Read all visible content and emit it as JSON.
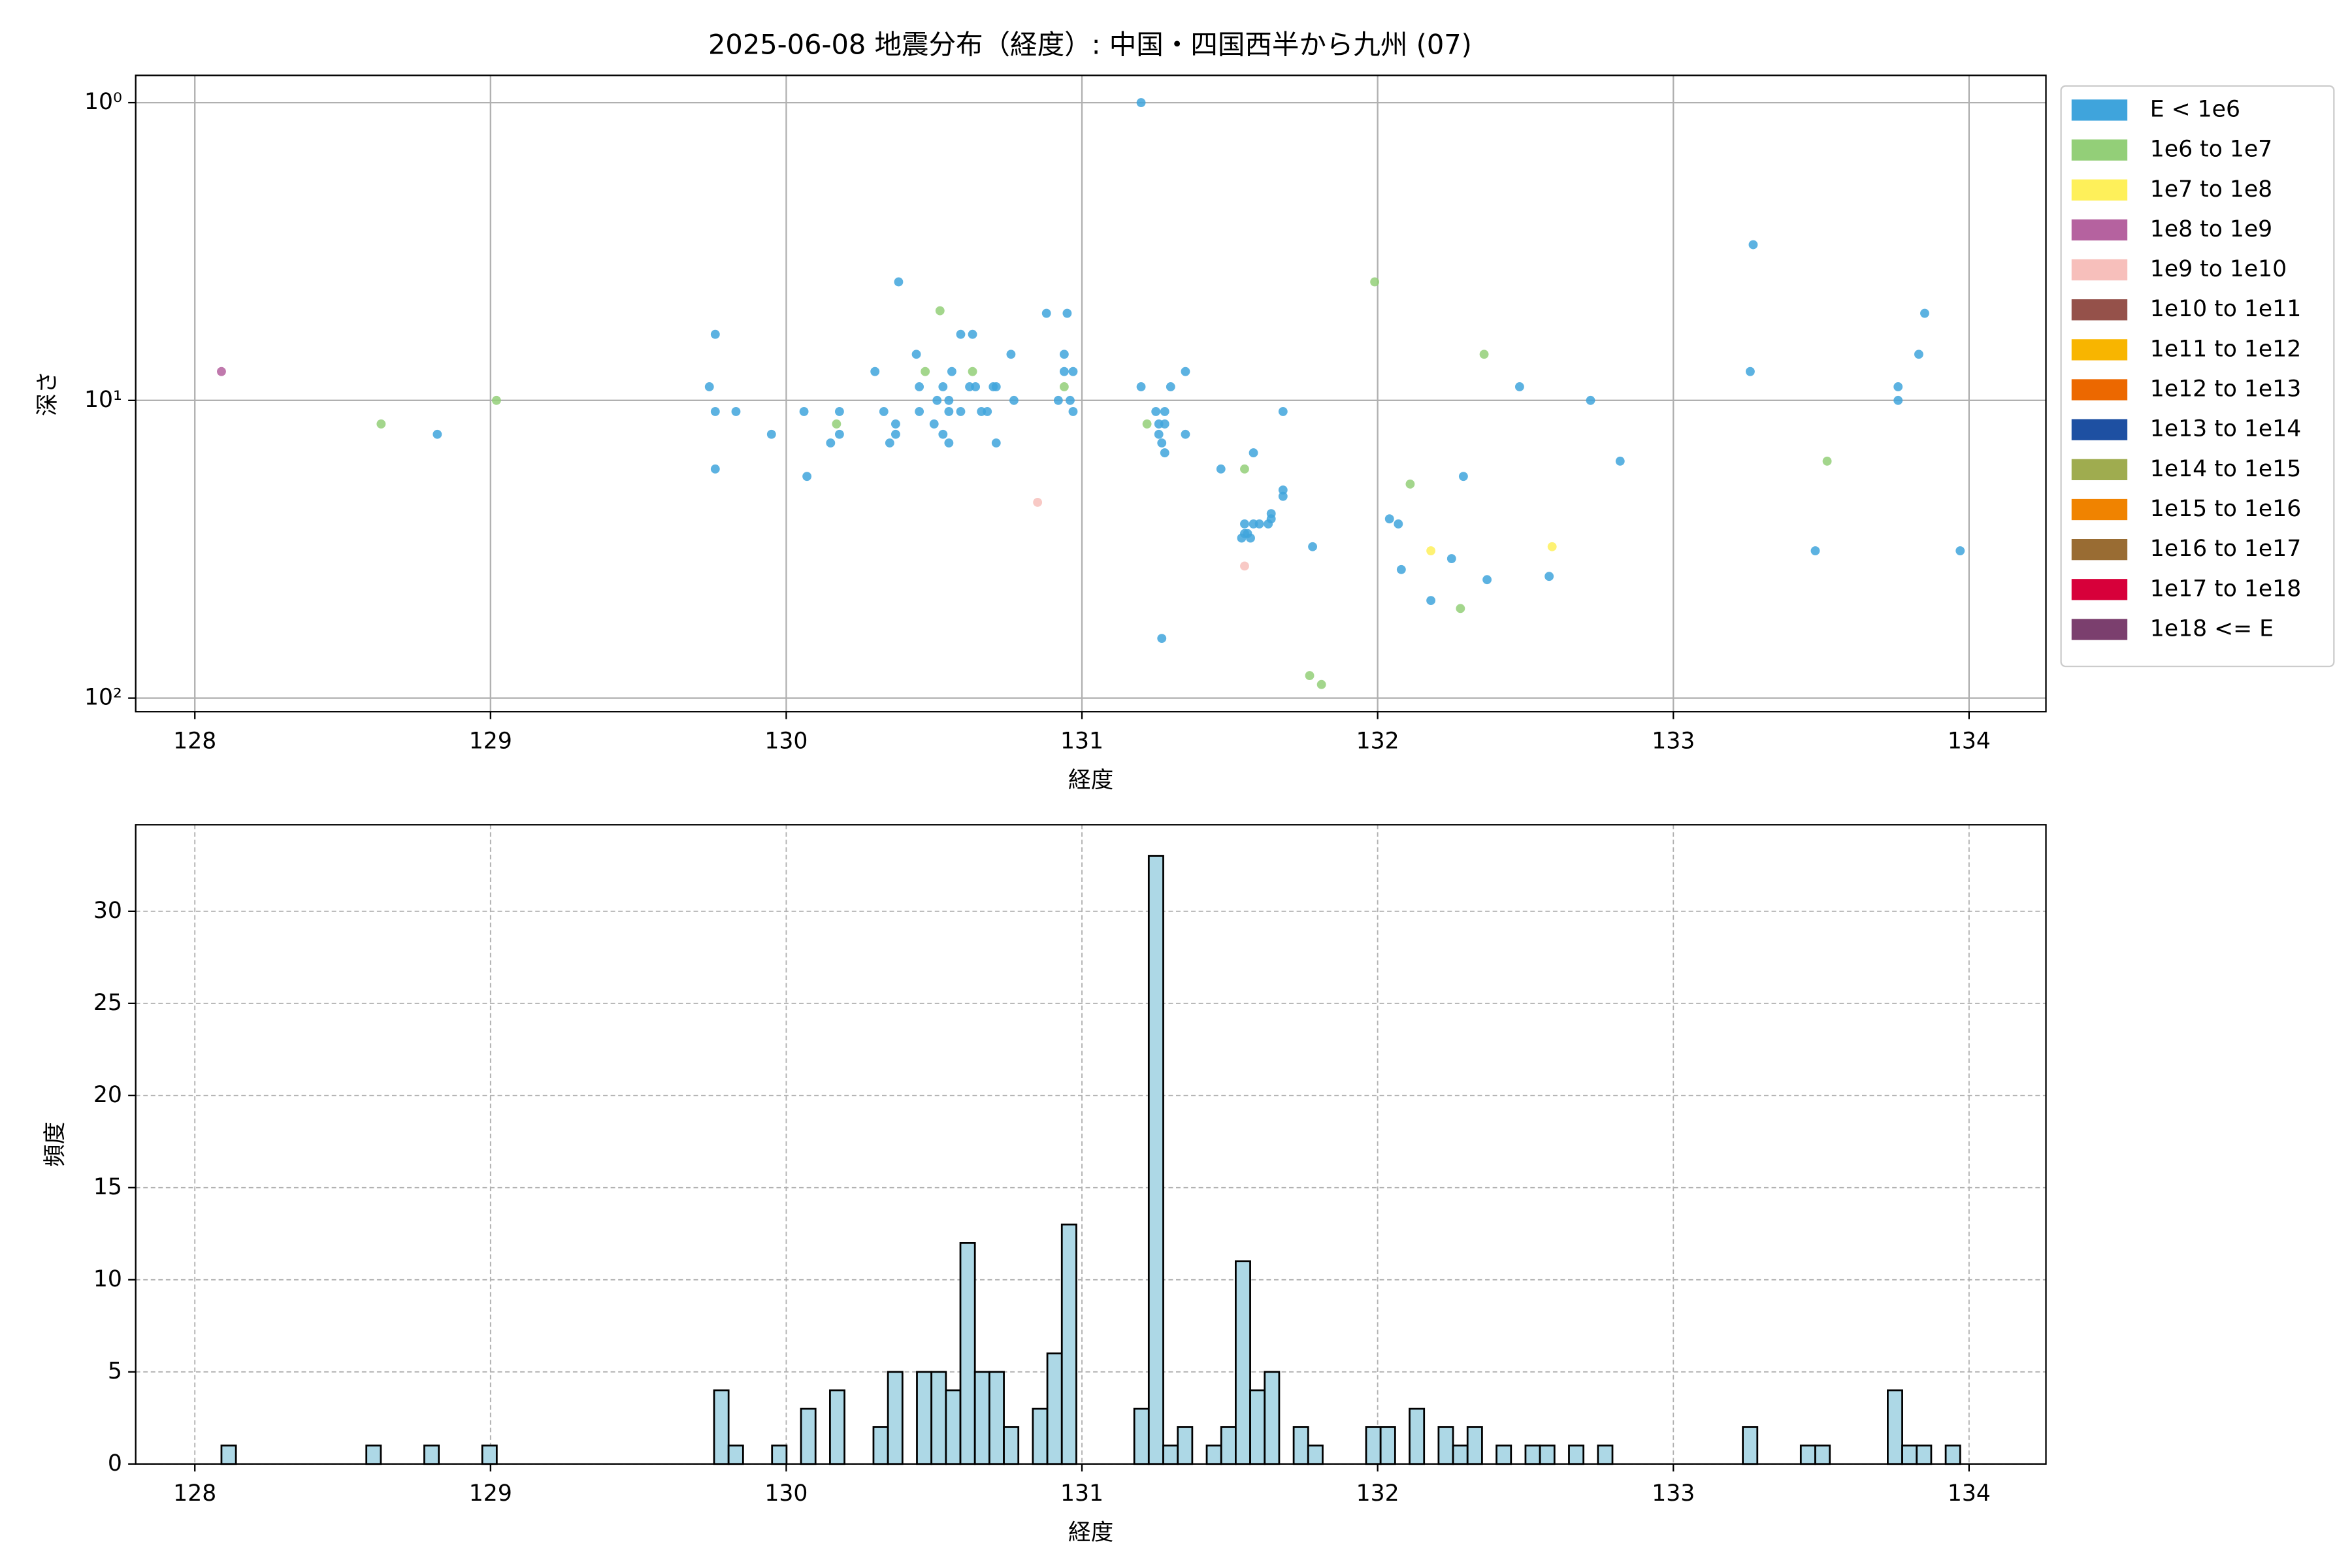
{
  "chart_data": [
    {
      "type": "scatter",
      "title": "2025-06-08 地震分布（経度）: 中国・四国西半から九州 (07)",
      "x_label": "経度",
      "y_label": "深さ",
      "xlim": [
        127.8,
        134.26
      ],
      "xticks": [
        128,
        129,
        130,
        131,
        132,
        133,
        134
      ],
      "ylim": [
        111,
        0.81
      ],
      "yscale": "log",
      "yticks": [
        {
          "value": 1,
          "label": "10⁰"
        },
        {
          "value": 10,
          "label": "10¹"
        },
        {
          "value": 100,
          "label": "10²"
        }
      ],
      "grid": true,
      "grid_style": "solid",
      "legend": "outside upper right",
      "series": [
        {
          "name": "E < 1e6",
          "color": "#3fa4dc",
          "x": [
            131.2,
            133.27,
            130.38,
            133.85,
            130.88,
            130.95,
            129.76,
            130.59,
            130.63,
            130.44,
            130.76,
            130.94,
            133.83,
            130.3,
            130.56,
            130.94,
            130.97,
            131.35,
            133.26,
            129.74,
            130.45,
            130.53,
            130.62,
            130.64,
            130.7,
            130.71,
            131.2,
            131.3,
            132.48,
            133.76,
            130.77,
            130.92,
            130.96,
            132.72,
            133.76,
            130.51,
            130.55,
            129.76,
            129.83,
            130.06,
            130.18,
            130.33,
            130.45,
            130.55,
            130.59,
            130.66,
            130.68,
            130.97,
            131.25,
            131.28,
            131.68,
            130.37,
            130.5,
            131.26,
            131.28,
            128.82,
            129.95,
            130.18,
            130.37,
            130.53,
            131.26,
            131.35,
            130.15,
            130.35,
            130.55,
            130.71,
            131.27,
            131.28,
            131.58,
            132.82,
            129.76,
            131.47,
            130.07,
            132.29,
            131.68,
            131.68,
            131.64,
            132.04,
            132.07,
            131.55,
            131.58,
            131.6,
            131.63,
            131.64,
            131.56,
            131.57,
            131.54,
            131.55,
            131.78,
            133.48,
            133.97,
            132.25,
            132.08,
            132.37,
            132.58,
            132.18,
            131.27
          ],
          "values": [
            1.0,
            3.0,
            4.0,
            5.1,
            5.1,
            5.1,
            6,
            6,
            6,
            7,
            7,
            7,
            7,
            8,
            8,
            8,
            8,
            8,
            8,
            9,
            9,
            9,
            9,
            9,
            9,
            9,
            9,
            9,
            9,
            9,
            10,
            10,
            10,
            10,
            10,
            10,
            10,
            10.9,
            10.9,
            10.9,
            10.9,
            10.9,
            10.9,
            10.9,
            10.9,
            10.9,
            10.9,
            10.9,
            10.9,
            10.9,
            10.9,
            12,
            12,
            12,
            12,
            13,
            13,
            13,
            13,
            13,
            13,
            13,
            13.9,
            13.9,
            13.9,
            13.9,
            13.9,
            15,
            15,
            16,
            17,
            17,
            18,
            18,
            20,
            21,
            24,
            25,
            26,
            26,
            26,
            26,
            26,
            25,
            28,
            29,
            29,
            28,
            31,
            32,
            32,
            34,
            37,
            40,
            39,
            47,
            63
          ]
        },
        {
          "name": "1e6 to 1e7",
          "color": "#93cf78",
          "x": [
            128.63,
            129.02,
            130.52,
            130.47,
            130.63,
            130.94,
            130.17,
            131.22,
            131.99,
            132.36,
            131.55,
            132.11,
            133.52,
            132.28,
            131.77,
            131.81
          ],
          "values": [
            12,
            10,
            5.0,
            8,
            8,
            9,
            12,
            12,
            4.0,
            7.0,
            17,
            19.1,
            16,
            50,
            84,
            90
          ]
        },
        {
          "name": "1e7 to 1e8",
          "color": "#fef05a",
          "x": [
            132.18,
            132.59
          ],
          "values": [
            32,
            31
          ]
        },
        {
          "name": "1e8 to 1e9",
          "color": "#b5629f",
          "x": [
            128.09
          ],
          "values": [
            8.0
          ]
        },
        {
          "name": "1e9 to 1e10",
          "color": "#f7bfbb",
          "x": [
            130.85,
            131.55
          ],
          "values": [
            22,
            36
          ]
        },
        {
          "name": "1e10 to 1e11",
          "color": "#95514a",
          "x": [],
          "values": []
        },
        {
          "name": "1e11 to 1e12",
          "color": "#f8b500",
          "x": [],
          "values": []
        },
        {
          "name": "1e12 to 1e13",
          "color": "#ec6800",
          "x": [],
          "values": []
        },
        {
          "name": "1e13 to 1e14",
          "color": "#1e50a2",
          "x": [],
          "values": []
        },
        {
          "name": "1e14 to 1e15",
          "color": "#9fac4f",
          "x": [],
          "values": []
        },
        {
          "name": "1e15 to 1e16",
          "color": "#f08300",
          "x": [],
          "values": []
        },
        {
          "name": "1e16 to 1e17",
          "color": "#996c33",
          "x": [],
          "values": []
        },
        {
          "name": "1e17 to 1e18",
          "color": "#d7003a",
          "x": [],
          "values": []
        },
        {
          "name": "1e18 <= E",
          "color": "#7b3f6e",
          "x": [],
          "values": []
        }
      ]
    },
    {
      "type": "histogram",
      "x_label": "経度",
      "y_label": "頻度",
      "xlim": [
        127.8,
        134.26
      ],
      "xticks": [
        128,
        129,
        130,
        131,
        132,
        133,
        134
      ],
      "ylim": [
        0,
        34.7
      ],
      "yticks": [
        0,
        5,
        10,
        15,
        20,
        25,
        30
      ],
      "grid": true,
      "grid_style": "dashed",
      "color": "#add8e6",
      "edgecolor": "#000000",
      "bins": [
        128.09,
        128.139,
        128.188,
        128.237,
        128.286,
        128.335,
        128.384,
        128.433,
        128.482,
        128.531,
        128.58,
        128.629,
        128.678,
        128.727,
        128.776,
        128.825,
        128.874,
        128.923,
        128.972,
        129.021,
        129.07,
        129.119,
        129.168,
        129.217,
        129.266,
        129.315,
        129.364,
        129.413,
        129.462,
        129.511,
        129.56,
        129.609,
        129.658,
        129.707,
        129.756,
        129.805,
        129.854,
        129.903,
        129.952,
        130.001,
        130.05,
        130.099,
        130.148,
        130.197,
        130.246,
        130.295,
        130.344,
        130.393,
        130.442,
        130.491,
        130.54,
        130.589,
        130.638,
        130.687,
        130.736,
        130.785,
        130.834,
        130.883,
        130.932,
        130.981,
        131.03,
        131.079,
        131.128,
        131.177,
        131.226,
        131.275,
        131.324,
        131.373,
        131.422,
        131.471,
        131.52,
        131.569,
        131.618,
        131.667,
        131.716,
        131.765,
        131.814,
        131.863,
        131.912,
        131.961,
        132.01,
        132.059,
        132.108,
        132.157,
        132.206,
        132.255,
        132.304,
        132.353,
        132.402,
        132.451,
        132.5,
        132.549,
        132.598,
        132.647,
        132.696,
        132.745,
        132.794,
        132.843,
        132.892,
        132.941,
        132.99,
        133.039,
        133.088,
        133.137,
        133.186,
        133.235,
        133.284,
        133.333,
        133.382,
        133.431,
        133.48,
        133.529,
        133.578,
        133.627,
        133.676,
        133.725,
        133.774,
        133.823,
        133.872,
        133.921,
        133.97
      ],
      "values": [
        1,
        0,
        0,
        0,
        0,
        0,
        0,
        0,
        0,
        0,
        1,
        0,
        0,
        0,
        1,
        0,
        0,
        0,
        1,
        0,
        0,
        0,
        0,
        0,
        0,
        0,
        0,
        0,
        0,
        0,
        0,
        0,
        0,
        0,
        4,
        1,
        0,
        0,
        1,
        0,
        3,
        0,
        4,
        0,
        0,
        2,
        5,
        0,
        5,
        5,
        4,
        12,
        5,
        5,
        2,
        0,
        3,
        6,
        13,
        0,
        0,
        0,
        0,
        3,
        33,
        1,
        2,
        0,
        1,
        2,
        11,
        4,
        5,
        0,
        2,
        1,
        0,
        0,
        0,
        2,
        2,
        0,
        3,
        0,
        2,
        1,
        2,
        0,
        1,
        0,
        1,
        1,
        0,
        1,
        0,
        1,
        0,
        0,
        0,
        0,
        0,
        0,
        0,
        0,
        0,
        2,
        0,
        0,
        0,
        1,
        1,
        0,
        0,
        0,
        0,
        4,
        1,
        1,
        0,
        1
      ]
    }
  ]
}
